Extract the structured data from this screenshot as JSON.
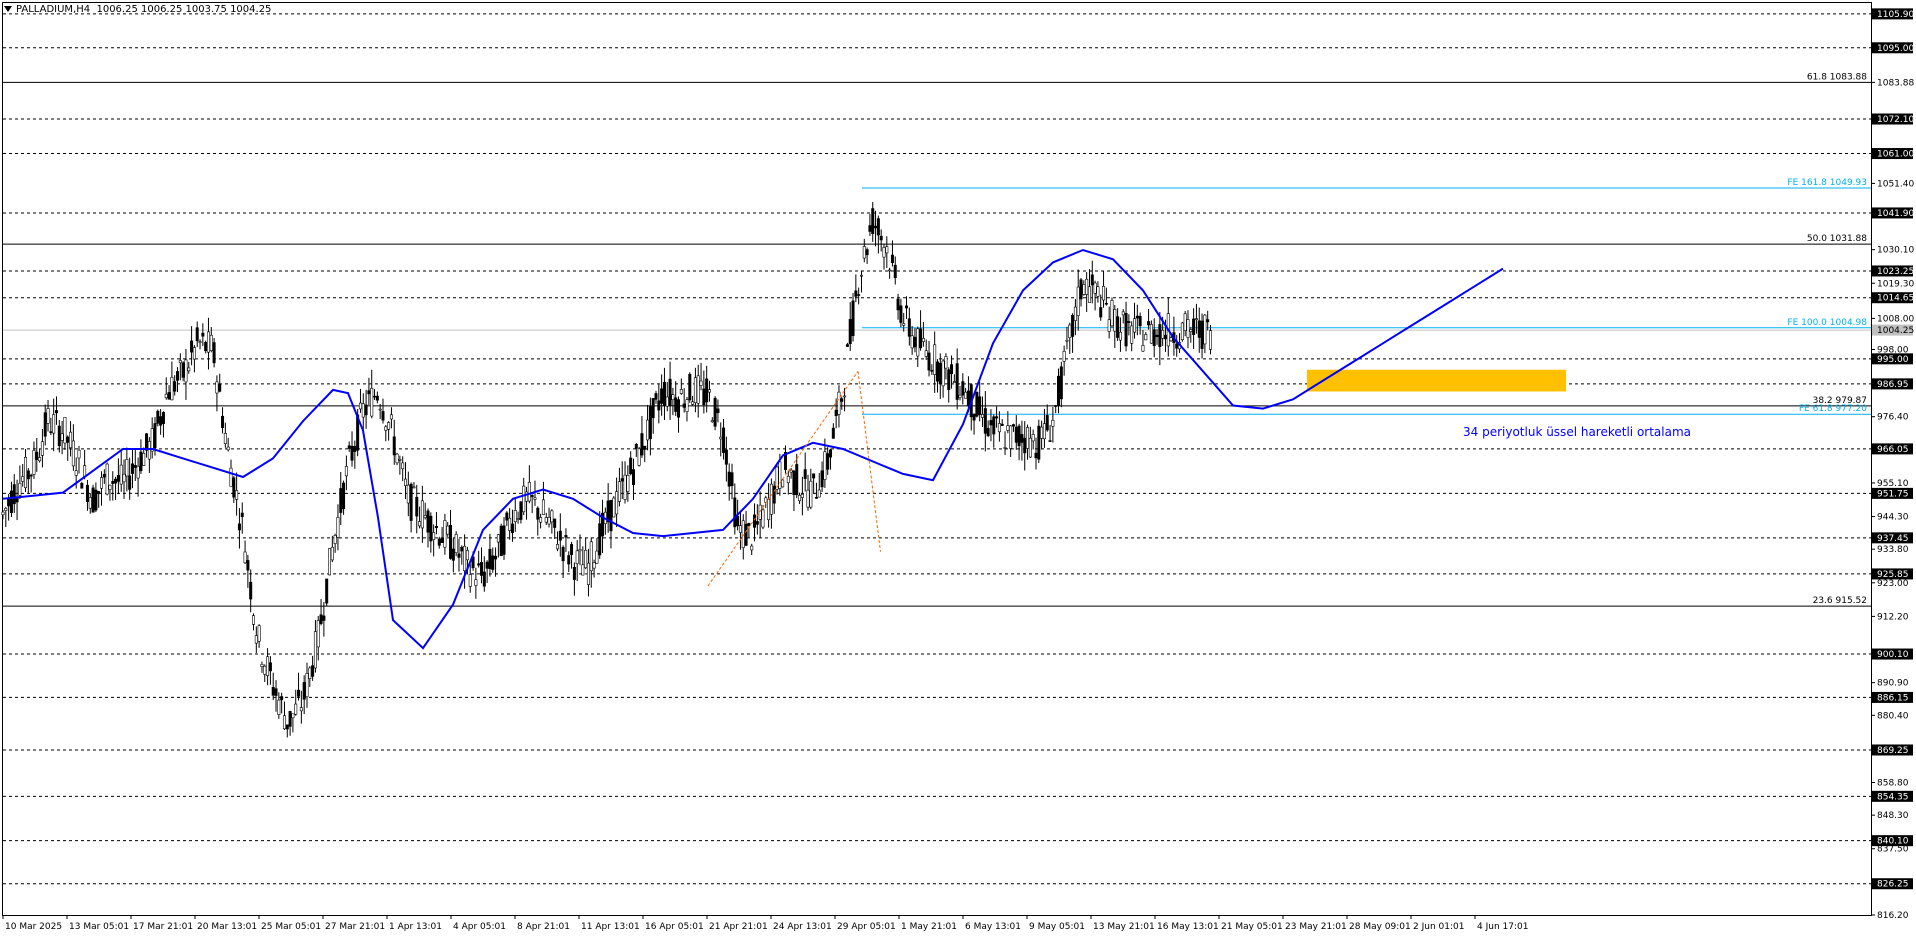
{
  "header": {
    "symbol": "PALLADIUM,H4",
    "ohlc": "1006.25 1006.25 1003.75 1004.25"
  },
  "colors": {
    "background": "#ffffff",
    "candle": "#000000",
    "ema": "#0000ff",
    "fib_retrace": "#000000",
    "fib_expansion": "#00b0f0",
    "zone": "#ffc000",
    "current_price_line": "#c0c0c0",
    "ema_label": "#0000ff",
    "trend_line": "#ff6600"
  },
  "chart_data": {
    "type": "candlestick",
    "symbol": "PALLADIUM",
    "timeframe": "H4",
    "grid": false,
    "ylim": [
      816.2,
      1109.4
    ],
    "y_ticks": [
      "1095.00",
      "1083.88",
      "1072.10",
      "1061.00",
      "1051.40",
      "1041.90",
      "1030.10",
      "1019.30",
      "1014.65",
      "1008.00",
      "998.00",
      "995.00",
      "986.95",
      "976.40",
      "966.05",
      "955.10",
      "951.75",
      "944.30",
      "937.45",
      "933.80",
      "925.85",
      "923.00",
      "912.20",
      "900.10",
      "890.90",
      "886.15",
      "880.40",
      "869.25",
      "858.80",
      "854.35",
      "848.30",
      "840.10",
      "837.50",
      "826.25",
      "816.20"
    ],
    "x_ticks": [
      "10 Mar 2025",
      "13 Mar 05:01",
      "17 Mar 21:01",
      "20 Mar 13:01",
      "25 Mar 05:01",
      "27 Mar 21:01",
      "1 Apr 13:01",
      "4 Apr 05:01",
      "8 Apr 21:01",
      "11 Apr 13:01",
      "16 Apr 05:01",
      "21 Apr 21:01",
      "24 Apr 13:01",
      "29 Apr 05:01",
      "1 May 21:01",
      "6 May 13:01",
      "9 May 05:01",
      "13 May 21:01",
      "16 May 13:01",
      "21 May 05:01",
      "23 May 21:01",
      "28 May 09:01",
      "2 Jun 01:01",
      "4 Jun 17:01"
    ],
    "price_boxes": [
      "1105.90",
      "1095.00",
      "1072.10",
      "1061.00",
      "1041.90",
      "1023.25",
      "1014.65",
      "1004.25",
      "995.00",
      "986.95",
      "966.05",
      "951.75",
      "937.45",
      "925.85",
      "900.10",
      "886.15",
      "869.25",
      "854.35",
      "840.10",
      "826.25"
    ],
    "horizontal_levels": [
      1105.9,
      1095.0,
      1072.1,
      1061.0,
      1041.9,
      1023.25,
      1014.65,
      995.0,
      986.95,
      966.05,
      951.75,
      937.45,
      925.85,
      900.1,
      886.15,
      869.25,
      854.35,
      840.1,
      826.25
    ],
    "fib_retracement": [
      {
        "label": "61.8 1083.88",
        "value": 1083.88
      },
      {
        "label": "50.0 1031.88",
        "value": 1031.88
      },
      {
        "label": "38.2 979.87",
        "value": 979.87
      },
      {
        "label": "23.6 915.52",
        "value": 915.52
      }
    ],
    "fib_expansion": [
      {
        "label": "FE 161.8 1049.93",
        "value": 1049.93
      },
      {
        "label": "FE 100.0 1004.98",
        "value": 1004.98
      },
      {
        "label": "FE 61.8 977.20",
        "value": 977.2
      }
    ],
    "current_price": 1004.25,
    "zone": {
      "from": 984.5,
      "to": 991.5
    },
    "ema": {
      "name": "34 periyotluk üssel hareketli ortalama",
      "x": [
        0,
        2,
        4,
        6,
        8,
        10,
        12,
        14,
        16,
        18,
        20,
        22,
        23,
        24,
        25,
        26,
        28,
        30,
        32,
        34,
        36,
        38,
        40,
        42,
        44,
        46,
        48,
        50,
        52,
        54,
        56,
        58,
        60,
        62,
        64,
        66,
        68,
        70,
        72,
        74,
        76,
        78,
        80,
        82,
        84,
        86,
        88,
        90,
        92,
        94,
        96,
        98,
        100
      ],
      "y": [
        950,
        951,
        952,
        959,
        966,
        966,
        963,
        960,
        957,
        963,
        975,
        985,
        984,
        972,
        944,
        911,
        902,
        916,
        940,
        950,
        953,
        950,
        944,
        939,
        938,
        939,
        940,
        950,
        964,
        968,
        966,
        962,
        958,
        956,
        974,
        1000,
        1017,
        1026,
        1030,
        1027,
        1017,
        1002,
        991,
        980,
        979,
        982,
        988,
        994,
        1000,
        1006,
        1012,
        1018,
        1024
      ]
    },
    "candle_path": {
      "x": [
        0,
        1,
        2,
        3,
        4,
        5,
        6,
        7,
        8,
        9,
        10,
        11,
        12,
        13,
        14,
        15,
        16,
        17,
        18,
        19,
        20,
        21,
        22,
        23,
        24,
        25,
        26,
        27,
        28,
        29,
        30,
        31,
        32,
        33,
        34,
        35,
        36,
        37,
        38,
        39,
        40,
        41,
        42,
        43,
        44,
        45,
        46,
        47,
        48,
        49,
        50,
        51,
        52,
        53,
        54,
        55,
        56,
        57,
        58,
        59,
        60,
        61,
        62,
        63,
        64,
        65,
        66,
        67,
        68,
        69,
        70,
        71,
        72,
        73,
        74,
        75,
        76,
        77,
        78,
        79,
        80,
        81,
        82,
        83,
        84,
        85,
        86,
        87,
        88,
        89,
        90,
        91,
        92,
        93,
        94,
        95,
        96,
        97,
        98,
        99,
        100
      ],
      "y": [
        945,
        955,
        960,
        975,
        972,
        962,
        950,
        957,
        955,
        962,
        968,
        985,
        990,
        1000,
        998,
        965,
        940,
        905,
        890,
        878,
        885,
        905,
        935,
        960,
        978,
        985,
        970,
        950,
        945,
        940,
        935,
        928,
        925,
        933,
        945,
        950,
        945,
        938,
        930,
        928,
        940,
        950,
        960,
        972,
        985,
        982,
        985,
        983,
        972,
        940,
        938,
        948,
        960,
        955,
        952,
        962,
        985,
        1020,
        1040,
        1030,
        1008,
        1000,
        995,
        990,
        986,
        978,
        972,
        970,
        970,
        968,
        975,
        998,
        1020,
        1015,
        1008,
        1004,
        1003,
        1004,
        1004,
        1004,
        1004,
        1004,
        1004,
        1004,
        1004,
        1004,
        1004,
        1004,
        1004,
        1004,
        1004,
        1004,
        1004,
        1004,
        1004,
        1004,
        1004,
        1004,
        1004,
        1004,
        1004
      ]
    },
    "annotations": [
      "34 periyotluk üssel hareketli ortalama"
    ]
  }
}
